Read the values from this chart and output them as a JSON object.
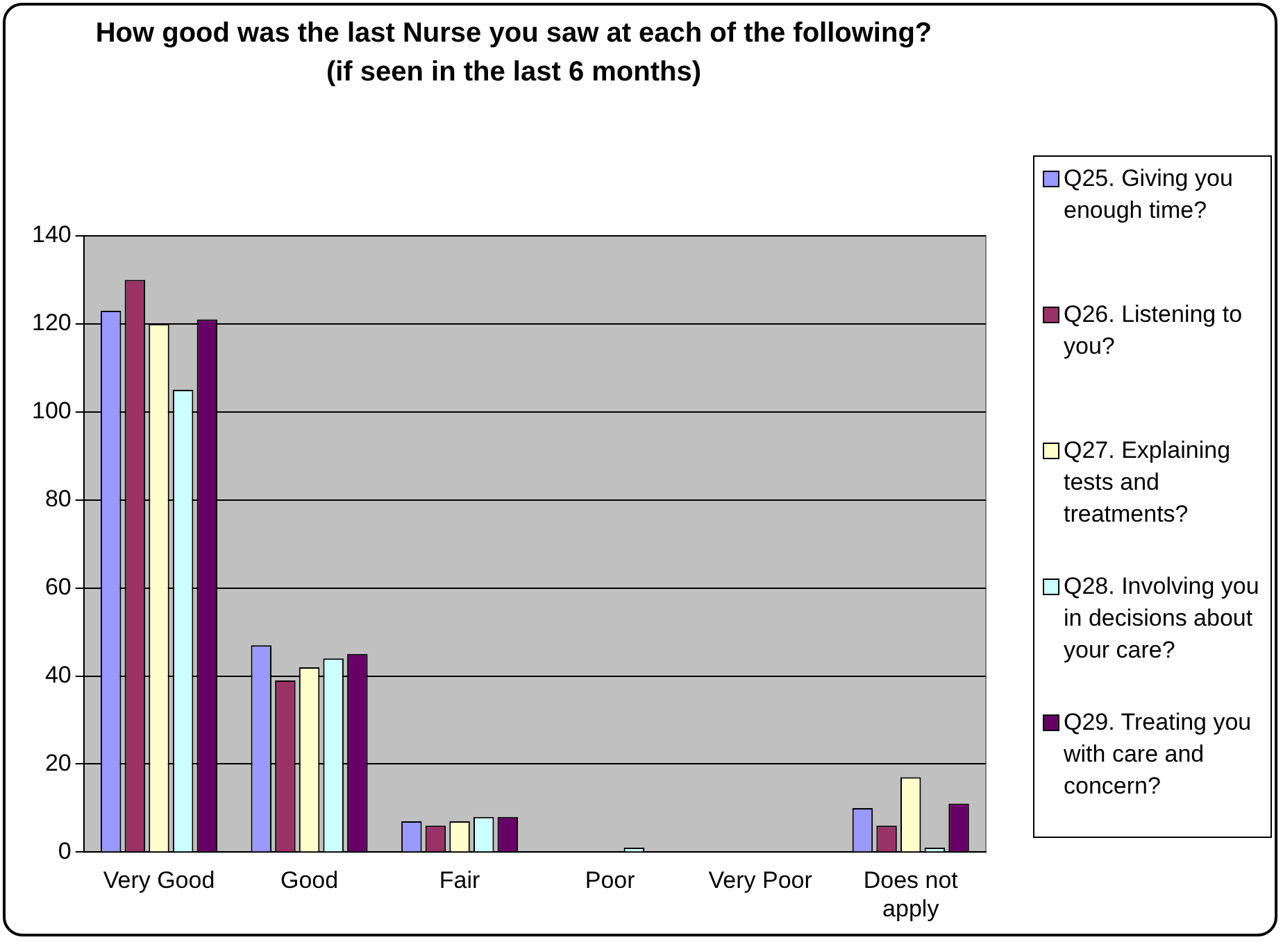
{
  "chart_data": {
    "type": "bar",
    "title": "How good was the last Nurse you saw at each of the following?",
    "subtitle": "(if seen in the last 6 months)",
    "categories": [
      "Very Good",
      "Good",
      "Fair",
      "Poor",
      "Very Poor",
      "Does not apply"
    ],
    "series": [
      {
        "name": "Q25. Giving you enough time?",
        "color": "#9999ff",
        "values": [
          123,
          47,
          7,
          0,
          0,
          10
        ]
      },
      {
        "name": "Q26. Listening to you?",
        "color": "#993366",
        "values": [
          130,
          39,
          6,
          0,
          0,
          6
        ]
      },
      {
        "name": "Q27. Explaining tests and treatments?",
        "color": "#ffffcc",
        "values": [
          120,
          42,
          7,
          0,
          0,
          17
        ]
      },
      {
        "name": "Q28. Involving you in decisions about your care?",
        "color": "#ccffff",
        "values": [
          105,
          44,
          8,
          1,
          0,
          1
        ]
      },
      {
        "name": "Q29. Treating you with care and concern?",
        "color": "#660066",
        "values": [
          121,
          45,
          8,
          0,
          0,
          11
        ]
      }
    ],
    "ylim": [
      0,
      140
    ],
    "yticks": [
      0,
      20,
      40,
      60,
      80,
      100,
      120,
      140
    ],
    "grid": "y",
    "legend": "right"
  }
}
